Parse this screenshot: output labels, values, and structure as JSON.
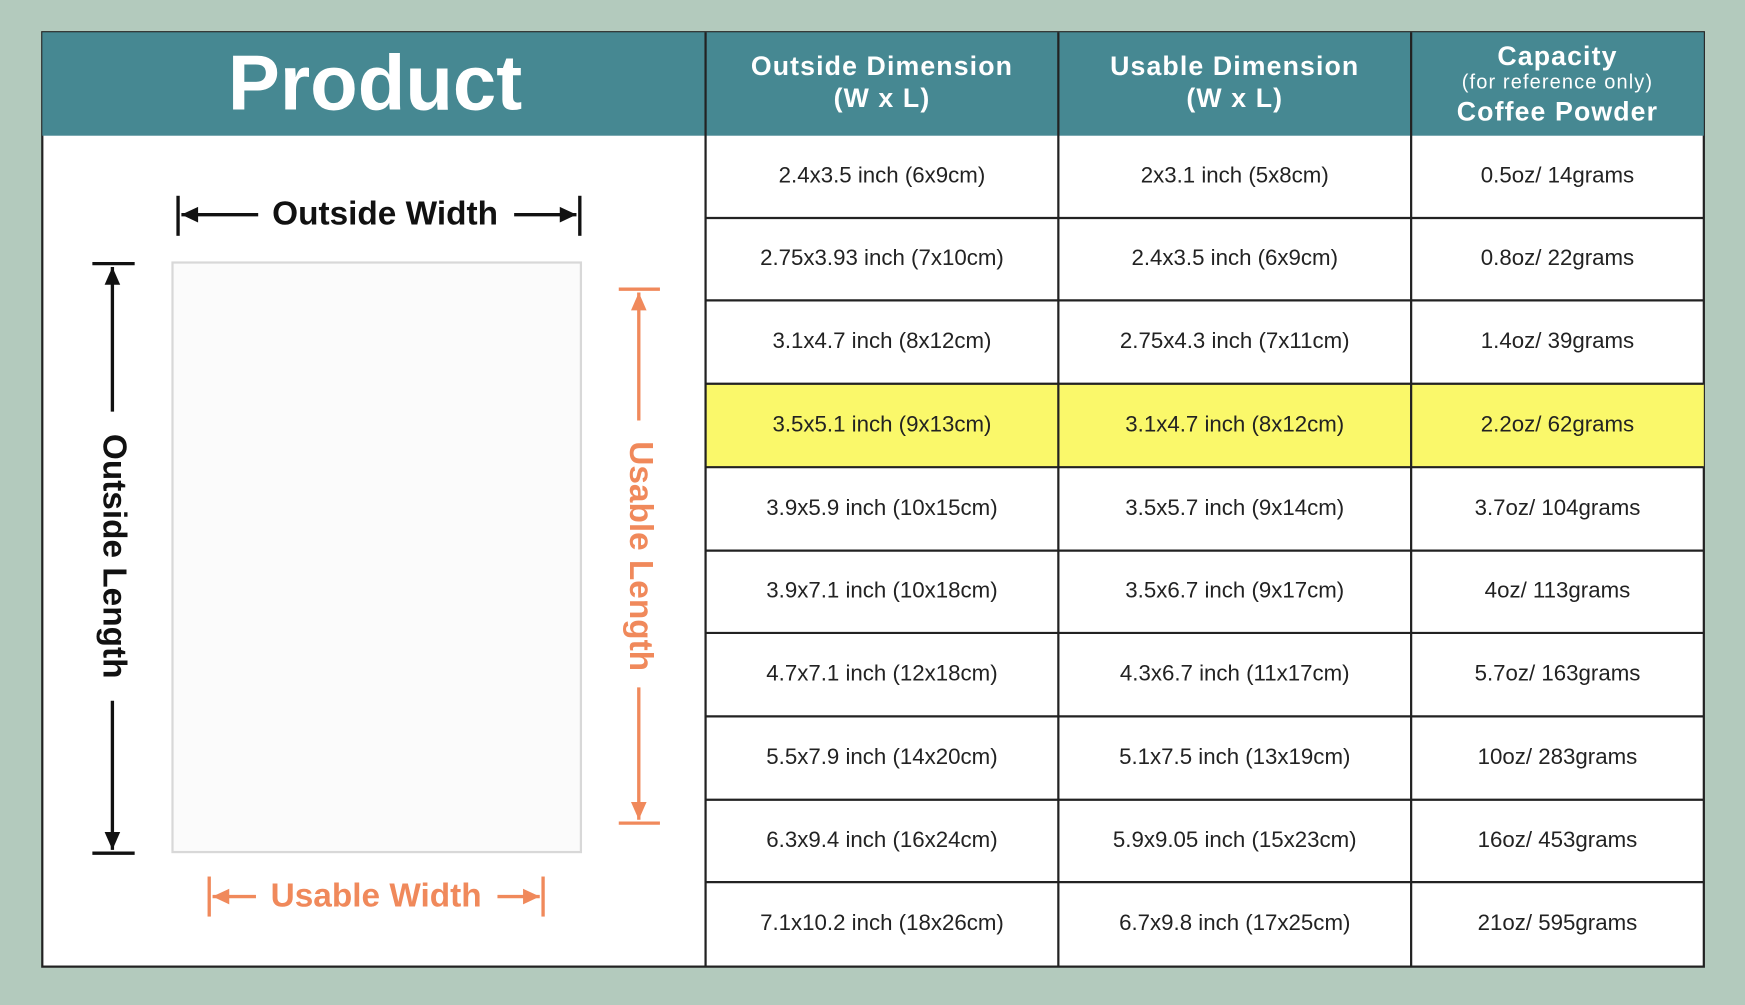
{
  "header": {
    "product": "Product",
    "columns": [
      [
        "Outside Dimension",
        "(W x L)"
      ],
      [
        "Usable Dimension",
        "(W x L)"
      ],
      [
        "Capacity",
        "(for reference only)",
        "Coffee Powder"
      ]
    ]
  },
  "illustration": {
    "outside_width": "Outside Width",
    "outside_length": "Outside Length",
    "usable_width": "Usable Width",
    "usable_length": "Usable Length"
  },
  "table": {
    "highlighted_row": 3,
    "highlight_color": "#faf86a",
    "rows": [
      [
        "2.4x3.5 inch (6x9cm)",
        "2x3.1 inch (5x8cm)",
        "0.5oz/ 14grams"
      ],
      [
        "2.75x3.93 inch (7x10cm)",
        "2.4x3.5 inch (6x9cm)",
        "0.8oz/ 22grams"
      ],
      [
        "3.1x4.7 inch (8x12cm)",
        "2.75x4.3 inch (7x11cm)",
        "1.4oz/ 39grams"
      ],
      [
        "3.5x5.1 inch (9x13cm)",
        "3.1x4.7 inch (8x12cm)",
        "2.2oz/ 62grams"
      ],
      [
        "3.9x5.9 inch (10x15cm)",
        "3.5x5.7 inch (9x14cm)",
        "3.7oz/ 104grams"
      ],
      [
        "3.9x7.1 inch (10x18cm)",
        "3.5x6.7 inch (9x17cm)",
        "4oz/ 113grams"
      ],
      [
        "4.7x7.1 inch (12x18cm)",
        "4.3x6.7 inch (11x17cm)",
        "5.7oz/ 163grams"
      ],
      [
        "5.5x7.9 inch (14x20cm)",
        "5.1x7.5 inch (13x19cm)",
        "10oz/ 283grams"
      ],
      [
        "6.3x9.4 inch (16x24cm)",
        "5.9x9.05 inch (15x23cm)",
        "16oz/ 453grams"
      ],
      [
        "7.1x10.2 inch (18x26cm)",
        "6.7x9.8 inch (17x25cm)",
        "21oz/ 595grams"
      ]
    ]
  }
}
